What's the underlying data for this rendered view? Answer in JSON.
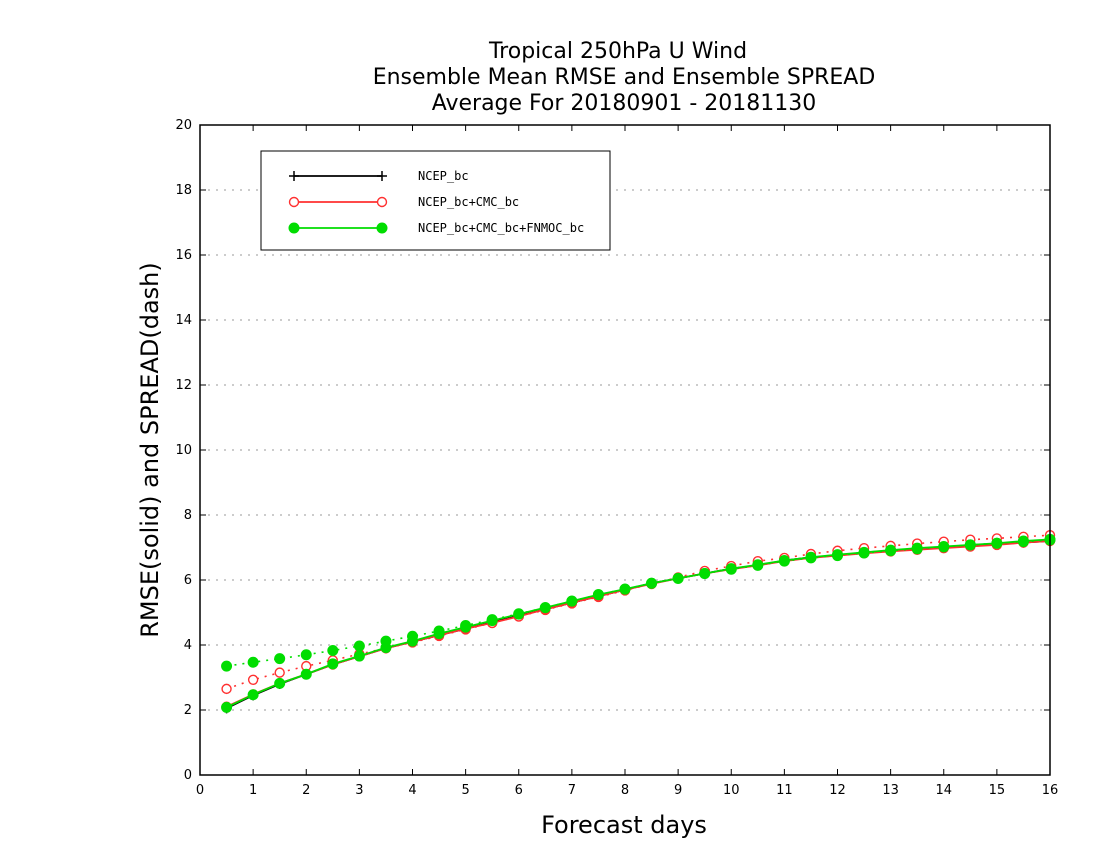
{
  "chart_data": {
    "type": "line",
    "title": [
      "Tropical 250hPa U Wind",
      "Ensemble Mean RMSE and Ensemble SPREAD",
      "Average For 20180901 - 20181130"
    ],
    "xlabel": "Forecast days",
    "ylabel": "RMSE(solid) and SPREAD(dash)",
    "xlim": [
      0,
      16
    ],
    "ylim": [
      0,
      20
    ],
    "xticks": [
      "0",
      "1",
      "2",
      "3",
      "4",
      "5",
      "6",
      "7",
      "8",
      "9",
      "10",
      "11",
      "12",
      "13",
      "14",
      "15",
      "16"
    ],
    "yticks": [
      "0",
      "2",
      "4",
      "6",
      "8",
      "10",
      "12",
      "14",
      "16",
      "18",
      "20"
    ],
    "grid": true,
    "legend_position": "top-left",
    "x": [
      0.5,
      1,
      1.5,
      2,
      2.5,
      3,
      3.5,
      4,
      4.5,
      5,
      5.5,
      6,
      6.5,
      7,
      7.5,
      8,
      8.5,
      9,
      9.5,
      10,
      10.5,
      11,
      11.5,
      12,
      12.5,
      13,
      13.5,
      14,
      14.5,
      15,
      15.5,
      16
    ],
    "series": [
      {
        "name": "NCEP_bc",
        "color": "#000000",
        "marker": "plus",
        "rmse": [
          2.05,
          2.45,
          2.8,
          3.1,
          3.4,
          3.65,
          3.9,
          4.1,
          4.3,
          4.5,
          4.7,
          4.9,
          5.1,
          5.3,
          5.5,
          5.7,
          5.9,
          6.05,
          6.2,
          6.35,
          6.45,
          6.6,
          6.7,
          6.75,
          6.85,
          6.9,
          6.95,
          7.0,
          7.05,
          7.1,
          7.15,
          7.2
        ],
        "spread": null
      },
      {
        "name": "NCEP_bc+CMC_bc",
        "color": "#ff3030",
        "marker": "open-circle",
        "rmse": [
          2.1,
          2.48,
          2.82,
          3.1,
          3.4,
          3.65,
          3.9,
          4.1,
          4.3,
          4.5,
          4.68,
          4.88,
          5.1,
          5.3,
          5.5,
          5.7,
          5.88,
          6.05,
          6.2,
          6.33,
          6.45,
          6.58,
          6.68,
          6.75,
          6.82,
          6.88,
          6.93,
          6.98,
          7.03,
          7.08,
          7.15,
          7.2
        ],
        "spread": [
          2.65,
          2.93,
          3.15,
          3.35,
          3.53,
          3.72,
          3.9,
          4.08,
          4.28,
          4.48,
          4.68,
          4.88,
          5.08,
          5.28,
          5.48,
          5.68,
          5.88,
          6.08,
          6.28,
          6.43,
          6.58,
          6.68,
          6.8,
          6.9,
          6.98,
          7.05,
          7.12,
          7.18,
          7.24,
          7.28,
          7.33,
          7.38
        ]
      },
      {
        "name": "NCEP_bc+CMC_bc+FNMOC_bc",
        "color": "#00dd00",
        "marker": "filled-circle",
        "rmse": [
          2.08,
          2.47,
          2.82,
          3.1,
          3.42,
          3.66,
          3.92,
          4.12,
          4.35,
          4.55,
          4.75,
          4.95,
          5.15,
          5.35,
          5.55,
          5.72,
          5.9,
          6.05,
          6.2,
          6.35,
          6.47,
          6.6,
          6.7,
          6.78,
          6.85,
          6.92,
          6.98,
          7.03,
          7.08,
          7.13,
          7.2,
          7.25
        ],
        "spread": [
          3.35,
          3.47,
          3.58,
          3.7,
          3.83,
          3.97,
          4.12,
          4.27,
          4.43,
          4.6,
          4.78,
          4.96,
          5.15,
          5.35,
          5.55,
          5.72,
          5.9,
          6.05,
          6.2,
          6.33,
          6.45,
          6.58,
          6.68,
          6.75,
          6.83,
          6.9,
          6.96,
          7.02,
          7.08,
          7.13,
          7.18,
          7.23
        ]
      }
    ]
  }
}
